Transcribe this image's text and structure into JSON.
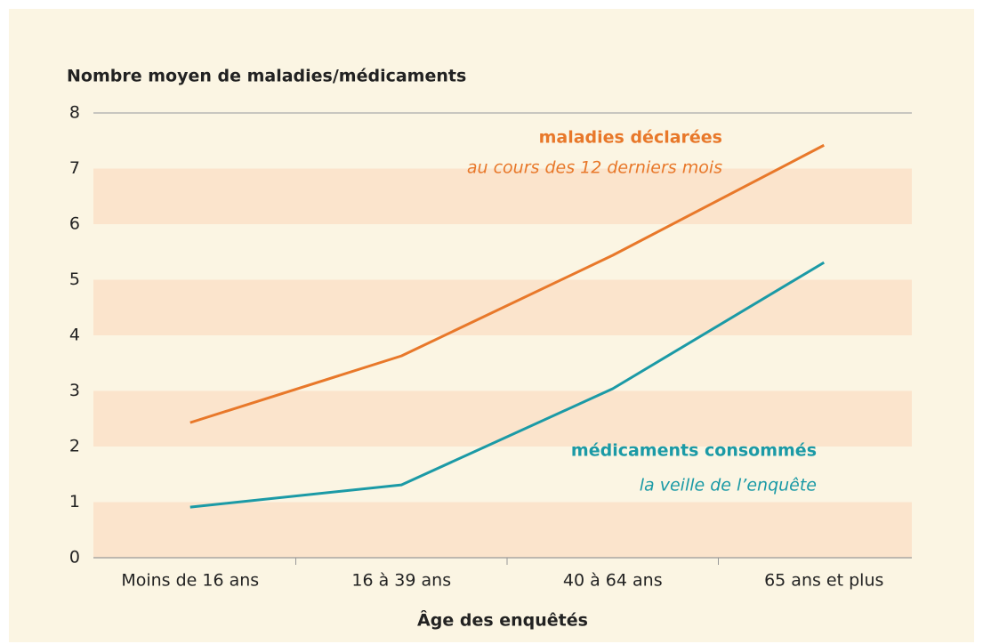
{
  "chart_data": {
    "type": "line",
    "title": "Nombre moyen de maladies/médicaments",
    "x_label": "Âge des enquêtés",
    "categories": [
      "Moins de 16 ans",
      "16 à 39 ans",
      "40 à 64 ans",
      "65 ans et plus"
    ],
    "series": [
      {
        "name": "maladies déclarées",
        "annotation": "au cours des 12 derniers mois",
        "color": "#e8782a",
        "values": [
          2.43,
          3.63,
          5.44,
          7.42
        ]
      },
      {
        "name": "médicaments consommés",
        "annotation": "la veille de l’enquête",
        "color": "#1b9aa6",
        "values": [
          0.91,
          1.31,
          3.04,
          5.31
        ]
      }
    ],
    "ylim": [
      0,
      8
    ],
    "yticks": [
      0,
      1,
      2,
      3,
      4,
      5,
      6,
      7,
      8
    ],
    "bands": true,
    "band_color": "#fbe4cc"
  }
}
